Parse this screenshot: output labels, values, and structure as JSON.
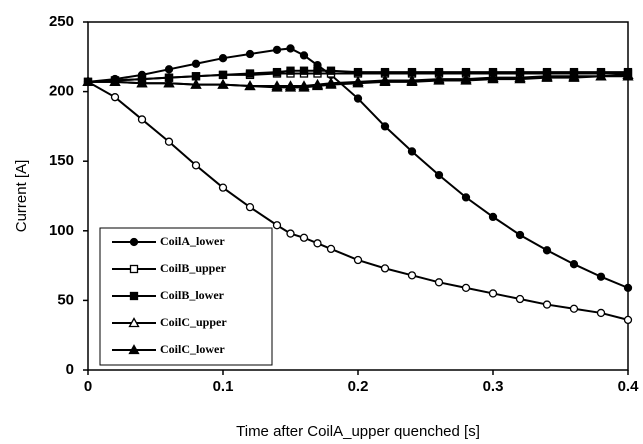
{
  "chart_data": {
    "type": "line",
    "xlabel": "Time after CoilA_upper quenched [s]",
    "ylabel": "Current [A]",
    "x": [
      0,
      0.02,
      0.04,
      0.06,
      0.08,
      0.1,
      0.12,
      0.14,
      0.15,
      0.16,
      0.17,
      0.18,
      0.2,
      0.22,
      0.24,
      0.26,
      0.28,
      0.3,
      0.32,
      0.34,
      0.36,
      0.38,
      0.4
    ],
    "series": [
      {
        "name": "CoilA_lower",
        "color": "#000",
        "marker": "circle",
        "filled": true,
        "values": [
          207,
          209,
          212,
          216,
          220,
          224,
          227,
          230,
          231,
          226,
          219,
          212,
          195,
          175,
          157,
          140,
          124,
          110,
          97,
          86,
          76,
          67,
          59
        ]
      },
      {
        "color": "#000",
        "marker": "circle",
        "filled": false,
        "values": [
          207,
          196,
          180,
          164,
          147,
          131,
          117,
          104,
          98,
          95,
          91,
          87,
          79,
          73,
          68,
          63,
          59,
          55,
          51,
          47,
          44,
          41,
          36
        ]
      },
      {
        "name": "CoilB_upper",
        "color": "#000",
        "marker": "square",
        "filled": false,
        "values": [
          207,
          208,
          209,
          210,
          211,
          212,
          212,
          213,
          213,
          213,
          213,
          213,
          213,
          213,
          213,
          213,
          213,
          213,
          213,
          213,
          213,
          213,
          213
        ]
      },
      {
        "name": "CoilB_lower",
        "color": "#000",
        "marker": "square",
        "filled": true,
        "values": [
          207,
          208,
          209,
          210,
          211,
          212,
          213,
          214,
          215,
          215,
          215,
          215,
          214,
          214,
          214,
          214,
          214,
          214,
          214,
          214,
          214,
          214,
          214
        ]
      },
      {
        "name": "CoilC_upper",
        "color": "#000",
        "marker": "triangle",
        "filled": false,
        "values": [
          207,
          207,
          206,
          206,
          205,
          205,
          204,
          204,
          204,
          204,
          205,
          206,
          207,
          208,
          208,
          209,
          209,
          210,
          210,
          211,
          211,
          211,
          212
        ]
      },
      {
        "name": "CoilC_lower",
        "color": "#000",
        "marker": "triangle",
        "filled": true,
        "values": [
          207,
          207,
          206,
          206,
          205,
          205,
          204,
          203,
          203,
          203,
          204,
          205,
          206,
          207,
          207,
          208,
          208,
          209,
          209,
          210,
          210,
          211,
          211
        ]
      }
    ],
    "xlim": [
      0,
      0.4
    ],
    "xticks": [
      0,
      0.1,
      0.2,
      0.3,
      0.4
    ],
    "ylim": [
      0,
      250
    ],
    "yticks": [
      0,
      50,
      100,
      150,
      200,
      250
    ],
    "legend": "lower left"
  }
}
